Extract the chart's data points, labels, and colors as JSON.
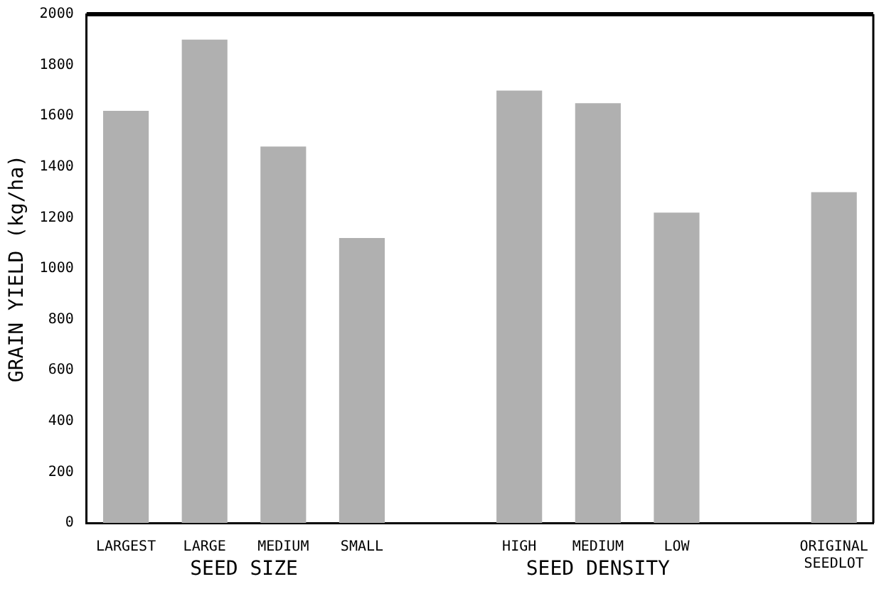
{
  "chart_data": {
    "type": "bar",
    "ylabel": "GRAIN YIELD (kg/ha)",
    "categories": [
      "LARGEST",
      "LARGE",
      "MEDIUM",
      "SMALL",
      null,
      "HIGH",
      "MEDIUM",
      "LOW",
      null,
      "ORIGINAL SEEDLOT"
    ],
    "values": [
      1620,
      1900,
      1480,
      1120,
      null,
      1700,
      1650,
      1220,
      null,
      1300
    ],
    "color": "#b0b0b0",
    "ylim": [
      0,
      2000
    ],
    "yticks": [
      0,
      200,
      400,
      600,
      800,
      1000,
      1200,
      1400,
      1600,
      1800,
      2000
    ],
    "grid": false,
    "annotations": [
      "SEED SIZE",
      "SEED DENSITY"
    ]
  }
}
